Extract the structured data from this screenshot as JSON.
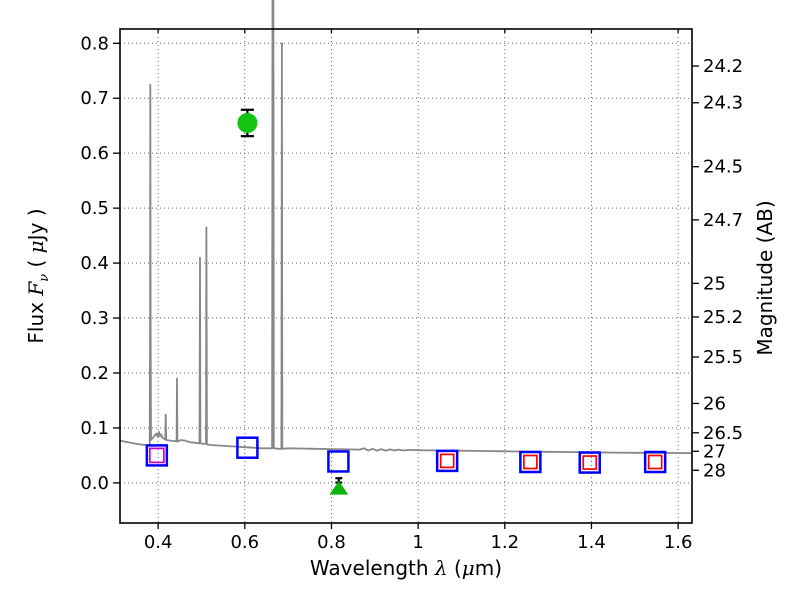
{
  "axes": {
    "xlabel": {
      "prefix": "Wavelength  ",
      "symbol": "λ",
      "open": " (",
      "mu": "μ",
      "unit": "m)"
    },
    "ylabel_left": {
      "prefix": "Flux  ",
      "symbol": "F",
      "sub": "ν",
      "open": "  ( ",
      "mu": "μ",
      "unit": "Jy )"
    },
    "ylabel_right": "Magnitude (AB)"
  },
  "chart_data": {
    "type": "line",
    "title": "",
    "xlabel": "Wavelength λ (μm)",
    "ylabel": "Flux Fν ( μJy )",
    "ylabel_right": "Magnitude (AB)",
    "xlim": [
      0.312,
      1.632
    ],
    "ylim": [
      -0.073,
      0.826
    ],
    "grid": "dotted",
    "grid_color": "#666666",
    "background": "#ffffff",
    "ab_zeropoint": 23.9,
    "x_ticks": [
      "0.4",
      "0.6",
      "0.8",
      "1",
      "1.2",
      "1.4",
      "1.6"
    ],
    "y_ticks_left": [
      "0.0",
      "0.1",
      "0.2",
      "0.3",
      "0.4",
      "0.5",
      "0.6",
      "0.7",
      "0.8"
    ],
    "y_ticks_right": [
      "24.2",
      "24.3",
      "24.5",
      "24.7",
      "25",
      "25.2",
      "25.5",
      "26",
      "26.5",
      "27",
      "28"
    ],
    "series": [
      {
        "name": "model-spectrum",
        "kind": "line",
        "color": "#878787",
        "width": 1.8,
        "points": [
          [
            0.312,
            0.077
          ],
          [
            0.33,
            0.074
          ],
          [
            0.35,
            0.071
          ],
          [
            0.368,
            0.069
          ],
          [
            0.378,
            0.068
          ],
          [
            0.3805,
            0.069
          ],
          [
            0.3815,
            0.3
          ],
          [
            0.382,
            0.725
          ],
          [
            0.3825,
            0.3
          ],
          [
            0.3835,
            0.078
          ],
          [
            0.388,
            0.082
          ],
          [
            0.392,
            0.086
          ],
          [
            0.396,
            0.09
          ],
          [
            0.399,
            0.084
          ],
          [
            0.402,
            0.093
          ],
          [
            0.404,
            0.085
          ],
          [
            0.407,
            0.088
          ],
          [
            0.41,
            0.082
          ],
          [
            0.4165,
            0.079
          ],
          [
            0.4175,
            0.124
          ],
          [
            0.4185,
            0.078
          ],
          [
            0.428,
            0.077
          ],
          [
            0.438,
            0.076
          ],
          [
            0.4425,
            0.076
          ],
          [
            0.4435,
            0.19
          ],
          [
            0.4445,
            0.075
          ],
          [
            0.452,
            0.078
          ],
          [
            0.462,
            0.077
          ],
          [
            0.474,
            0.074
          ],
          [
            0.486,
            0.073
          ],
          [
            0.4955,
            0.072
          ],
          [
            0.4965,
            0.41
          ],
          [
            0.4975,
            0.073
          ],
          [
            0.503,
            0.071
          ],
          [
            0.5105,
            0.071
          ],
          [
            0.5115,
            0.465
          ],
          [
            0.5125,
            0.07
          ],
          [
            0.52,
            0.069
          ],
          [
            0.54,
            0.068
          ],
          [
            0.56,
            0.067
          ],
          [
            0.58,
            0.066
          ],
          [
            0.6,
            0.065
          ],
          [
            0.62,
            0.064
          ],
          [
            0.64,
            0.063
          ],
          [
            0.658,
            0.063
          ],
          [
            0.663,
            0.063
          ],
          [
            0.664,
            0.9
          ],
          [
            0.666,
            0.9
          ],
          [
            0.667,
            0.063
          ],
          [
            0.677,
            0.062
          ],
          [
            0.6845,
            0.062
          ],
          [
            0.6855,
            0.8
          ],
          [
            0.6865,
            0.062
          ],
          [
            0.7,
            0.063
          ],
          [
            0.73,
            0.0625
          ],
          [
            0.76,
            0.062
          ],
          [
            0.8,
            0.0615
          ],
          [
            0.84,
            0.061
          ],
          [
            0.865,
            0.0605
          ],
          [
            0.875,
            0.063
          ],
          [
            0.885,
            0.059
          ],
          [
            0.895,
            0.062
          ],
          [
            0.905,
            0.0585
          ],
          [
            0.915,
            0.0615
          ],
          [
            0.925,
            0.0585
          ],
          [
            0.935,
            0.061
          ],
          [
            0.945,
            0.059
          ],
          [
            0.955,
            0.0605
          ],
          [
            0.965,
            0.059
          ],
          [
            0.98,
            0.06
          ],
          [
            1.0,
            0.0595
          ],
          [
            1.05,
            0.059
          ],
          [
            1.1,
            0.0585
          ],
          [
            1.15,
            0.058
          ],
          [
            1.2,
            0.0575
          ],
          [
            1.25,
            0.057
          ],
          [
            1.3,
            0.0565
          ],
          [
            1.35,
            0.056
          ],
          [
            1.4,
            0.0558
          ],
          [
            1.45,
            0.0552
          ],
          [
            1.5,
            0.0548
          ],
          [
            1.55,
            0.0545
          ],
          [
            1.6,
            0.0543
          ],
          [
            1.632,
            0.0542
          ]
        ]
      },
      {
        "name": "model-photometry-squares",
        "kind": "scatter",
        "marker": "open-square",
        "color": "#0000ff",
        "size": 20,
        "stroke": 2.5,
        "points": [
          [
            0.397,
            0.05
          ],
          [
            0.606,
            0.064
          ],
          [
            0.816,
            0.039
          ],
          [
            1.067,
            0.04
          ],
          [
            1.259,
            0.038
          ],
          [
            1.396,
            0.037
          ],
          [
            1.547,
            0.038
          ]
        ]
      },
      {
        "name": "observed-photometry-red-squares",
        "kind": "scatter",
        "marker": "open-square",
        "color": "#ff0000",
        "size": 13,
        "stroke": 1.7,
        "points": [
          [
            1.067,
            0.04
          ],
          [
            1.259,
            0.038
          ],
          [
            1.396,
            0.037
          ],
          [
            1.547,
            0.038
          ]
        ]
      },
      {
        "name": "observed-photometry-magenta-square",
        "kind": "scatter",
        "marker": "open-square",
        "color": "#cc00cc",
        "size": 14,
        "stroke": 1.7,
        "points": [
          [
            0.397,
            0.05
          ]
        ]
      },
      {
        "name": "detection-green-circle",
        "kind": "scatter",
        "marker": "filled-circle",
        "color": "#10c410",
        "size": 19,
        "errorbar_color": "#000000",
        "points": [
          [
            0.606,
            0.655
          ]
        ],
        "yerr": [
          0.024
        ]
      },
      {
        "name": "faint-point-errorbar",
        "kind": "scatter",
        "marker": "errorbar-only",
        "color": "#000000",
        "size": 9,
        "points": [
          [
            0.817,
            0.0045
          ]
        ],
        "yerr": [
          0.004
        ]
      },
      {
        "name": "upper-limit-green-triangle",
        "kind": "scatter",
        "marker": "filled-triangle-up",
        "color": "#0cb40c",
        "size": 17,
        "points": [
          [
            0.817,
            -0.0105
          ]
        ]
      }
    ]
  }
}
